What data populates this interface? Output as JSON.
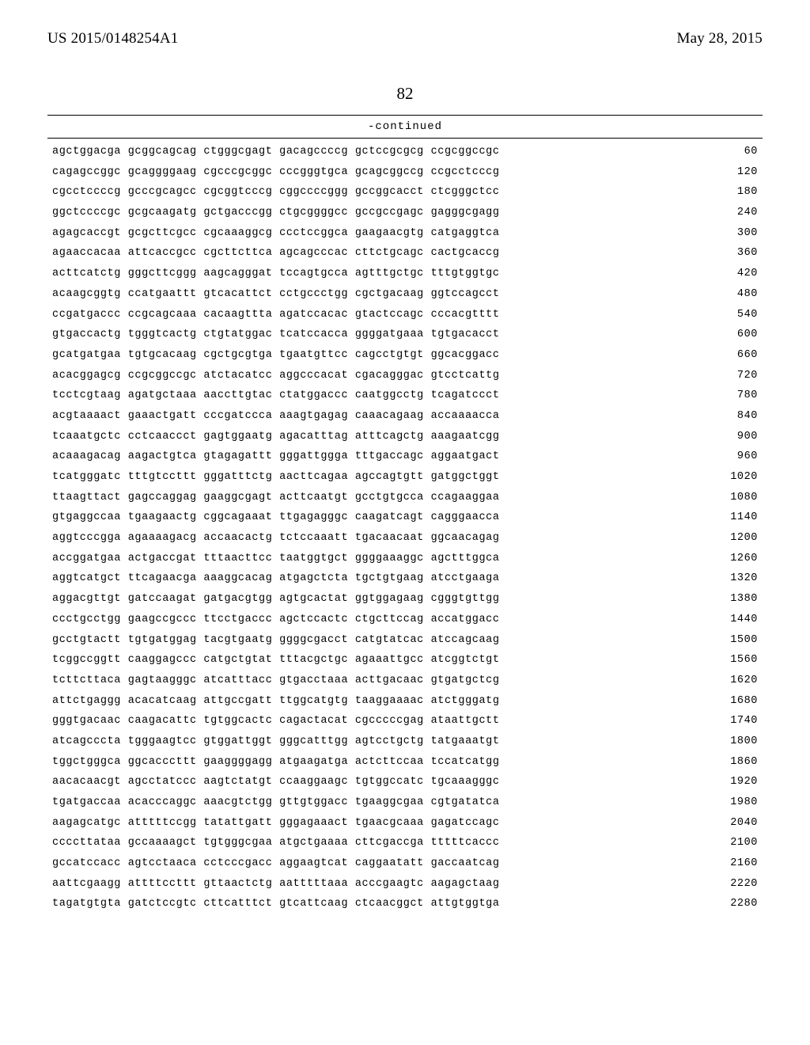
{
  "header": {
    "pub_number": "US 2015/0148254A1",
    "pub_date": "May 28, 2015"
  },
  "page_number": "82",
  "continued_label": "-continued",
  "sequence": {
    "font_family": "Courier New",
    "font_size_pt": 10,
    "text_color": "#000000",
    "background_color": "#ffffff",
    "rows": [
      {
        "groups": [
          "agctggacga",
          "gcggcagcag",
          "ctgggcgagt",
          "gacagccccg",
          "gctccgcgcg",
          "ccgcggccgc"
        ],
        "pos": 60
      },
      {
        "groups": [
          "cagagccggc",
          "gcaggggaag",
          "cgcccgcggc",
          "cccgggtgca",
          "gcagcggccg",
          "ccgcctcccg"
        ],
        "pos": 120
      },
      {
        "groups": [
          "cgcctccccg",
          "gcccgcagcc",
          "cgcggtcccg",
          "cggccccggg",
          "gccggcacct",
          "ctcgggctcc"
        ],
        "pos": 180
      },
      {
        "groups": [
          "ggctccccgc",
          "gcgcaagatg",
          "gctgacccgg",
          "ctgcggggcc",
          "gccgccgagc",
          "gagggcgagg"
        ],
        "pos": 240
      },
      {
        "groups": [
          "agagcaccgt",
          "gcgcttcgcc",
          "cgcaaaggcg",
          "ccctccggca",
          "gaagaacgtg",
          "catgaggtca"
        ],
        "pos": 300
      },
      {
        "groups": [
          "agaaccacaa",
          "attcaccgcc",
          "cgcttcttca",
          "agcagcccac",
          "cttctgcagc",
          "cactgcaccg"
        ],
        "pos": 360
      },
      {
        "groups": [
          "acttcatctg",
          "gggcttcggg",
          "aagcagggat",
          "tccagtgcca",
          "agtttgctgc",
          "tttgtggtgc"
        ],
        "pos": 420
      },
      {
        "groups": [
          "acaagcggtg",
          "ccatgaattt",
          "gtcacattct",
          "cctgccctgg",
          "cgctgacaag",
          "ggtccagcct"
        ],
        "pos": 480
      },
      {
        "groups": [
          "ccgatgaccc",
          "ccgcagcaaa",
          "cacaagttta",
          "agatccacac",
          "gtactccagc",
          "cccacgtttt"
        ],
        "pos": 540
      },
      {
        "groups": [
          "gtgaccactg",
          "tgggtcactg",
          "ctgtatggac",
          "tcatccacca",
          "ggggatgaaa",
          "tgtgacacct"
        ],
        "pos": 600
      },
      {
        "groups": [
          "gcatgatgaa",
          "tgtgcacaag",
          "cgctgcgtga",
          "tgaatgttcc",
          "cagcctgtgt",
          "ggcacggacc"
        ],
        "pos": 660
      },
      {
        "groups": [
          "acacggagcg",
          "ccgcggccgc",
          "atctacatcc",
          "aggcccacat",
          "cgacagggac",
          "gtcctcattg"
        ],
        "pos": 720
      },
      {
        "groups": [
          "tcctcgtaag",
          "agatgctaaa",
          "aaccttgtac",
          "ctatggaccc",
          "caatggcctg",
          "tcagatccct"
        ],
        "pos": 780
      },
      {
        "groups": [
          "acgtaaaact",
          "gaaactgatt",
          "cccgatccca",
          "aaagtgagag",
          "caaacagaag",
          "accaaaacca"
        ],
        "pos": 840
      },
      {
        "groups": [
          "tcaaatgctc",
          "cctcaaccct",
          "gagtggaatg",
          "agacatttag",
          "atttcagctg",
          "aaagaatcgg"
        ],
        "pos": 900
      },
      {
        "groups": [
          "acaaagacag",
          "aagactgtca",
          "gtagagattt",
          "gggattggga",
          "tttgaccagc",
          "aggaatgact"
        ],
        "pos": 960
      },
      {
        "groups": [
          "tcatgggatc",
          "tttgtccttt",
          "gggatttctg",
          "aacttcagaa",
          "agccagtgtt",
          "gatggctggt"
        ],
        "pos": 1020
      },
      {
        "groups": [
          "ttaagttact",
          "gagccaggag",
          "gaaggcgagt",
          "acttcaatgt",
          "gcctgtgcca",
          "ccagaaggaa"
        ],
        "pos": 1080
      },
      {
        "groups": [
          "gtgaggccaa",
          "tgaagaactg",
          "cggcagaaat",
          "ttgagagggc",
          "caagatcagt",
          "cagggaacca"
        ],
        "pos": 1140
      },
      {
        "groups": [
          "aggtcccgga",
          "agaaaagacg",
          "accaacactg",
          "tctccaaatt",
          "tgacaacaat",
          "ggcaacagag"
        ],
        "pos": 1200
      },
      {
        "groups": [
          "accggatgaa",
          "actgaccgat",
          "tttaacttcc",
          "taatggtgct",
          "ggggaaaggc",
          "agctttggca"
        ],
        "pos": 1260
      },
      {
        "groups": [
          "aggtcatgct",
          "ttcagaacga",
          "aaaggcacag",
          "atgagctcta",
          "tgctgtgaag",
          "atcctgaaga"
        ],
        "pos": 1320
      },
      {
        "groups": [
          "aggacgttgt",
          "gatccaagat",
          "gatgacgtgg",
          "agtgcactat",
          "ggtggagaag",
          "cgggtgttgg"
        ],
        "pos": 1380
      },
      {
        "groups": [
          "ccctgcctgg",
          "gaagccgccc",
          "ttcctgaccc",
          "agctccactc",
          "ctgcttccag",
          "accatggacc"
        ],
        "pos": 1440
      },
      {
        "groups": [
          "gcctgtactt",
          "tgtgatggag",
          "tacgtgaatg",
          "ggggcgacct",
          "catgtatcac",
          "atccagcaag"
        ],
        "pos": 1500
      },
      {
        "groups": [
          "tcggccggtt",
          "caaggagccc",
          "catgctgtat",
          "tttacgctgc",
          "agaaattgcc",
          "atcggtctgt"
        ],
        "pos": 1560
      },
      {
        "groups": [
          "tcttcttaca",
          "gagtaagggc",
          "atcatttacc",
          "gtgacctaaa",
          "acttgacaac",
          "gtgatgctcg"
        ],
        "pos": 1620
      },
      {
        "groups": [
          "attctgaggg",
          "acacatcaag",
          "attgccgatt",
          "ttggcatgtg",
          "taaggaaaac",
          "atctgggatg"
        ],
        "pos": 1680
      },
      {
        "groups": [
          "gggtgacaac",
          "caagacattc",
          "tgtggcactc",
          "cagactacat",
          "cgcccccgag",
          "ataattgctt"
        ],
        "pos": 1740
      },
      {
        "groups": [
          "atcagcccta",
          "tgggaagtcc",
          "gtggattggt",
          "gggcatttgg",
          "agtcctgctg",
          "tatgaaatgt"
        ],
        "pos": 1800
      },
      {
        "groups": [
          "tggctgggca",
          "ggcacccttt",
          "gaaggggagg",
          "atgaagatga",
          "actcttccaa",
          "tccatcatgg"
        ],
        "pos": 1860
      },
      {
        "groups": [
          "aacacaacgt",
          "agcctatccc",
          "aagtctatgt",
          "ccaaggaagc",
          "tgtggccatc",
          "tgcaaagggc"
        ],
        "pos": 1920
      },
      {
        "groups": [
          "tgatgaccaa",
          "acacccaggc",
          "aaacgtctgg",
          "gttgtggacc",
          "tgaaggcgaa",
          "cgtgatatca"
        ],
        "pos": 1980
      },
      {
        "groups": [
          "aagagcatgc",
          "atttttccgg",
          "tatattgatt",
          "gggagaaact",
          "tgaacgcaaa",
          "gagatccagc"
        ],
        "pos": 2040
      },
      {
        "groups": [
          "ccccttataa",
          "gccaaaagct",
          "tgtgggcgaa",
          "atgctgaaaa",
          "cttcgaccga",
          "tttttcaccc"
        ],
        "pos": 2100
      },
      {
        "groups": [
          "gccatccacc",
          "agtcctaaca",
          "cctcccgacc",
          "aggaagtcat",
          "caggaatatt",
          "gaccaatcag"
        ],
        "pos": 2160
      },
      {
        "groups": [
          "aattcgaagg",
          "attttccttt",
          "gttaactctg",
          "aatttttaaa",
          "acccgaagtc",
          "aagagctaag"
        ],
        "pos": 2220
      },
      {
        "groups": [
          "tagatgtgta",
          "gatctccgtc",
          "cttcatttct",
          "gtcattcaag",
          "ctcaacggct",
          "attgtggtga"
        ],
        "pos": 2280
      }
    ]
  }
}
